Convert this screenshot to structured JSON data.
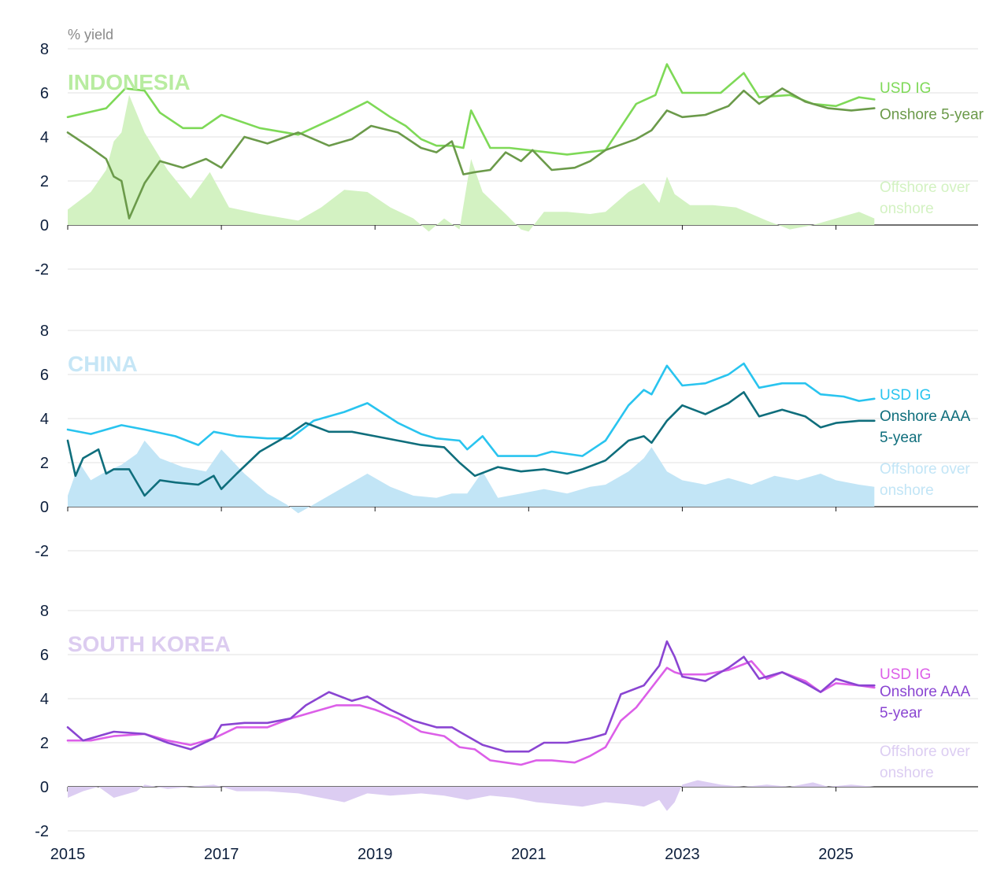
{
  "unit_label": "% yield",
  "chart_data": {
    "type": "line",
    "x_ticks": [
      "2015",
      "2017",
      "2019",
      "2021",
      "2023",
      "2025"
    ],
    "xlim": [
      2015.0,
      2026.85
    ],
    "panels": [
      {
        "title": "INDONESIA",
        "title_color": "#b8eca0",
        "ylim": [
          -2,
          8
        ],
        "y_ticks": [
          8,
          6,
          4,
          2,
          0,
          -2
        ],
        "series": [
          {
            "name": "USD IG",
            "label_lines": [
              "USD IG"
            ],
            "type": "line",
            "color": "#7ed957",
            "x": [
              2015.0,
              2015.5,
              2015.75,
              2016.0,
              2016.2,
              2016.5,
              2016.75,
              2017.0,
              2017.5,
              2018.0,
              2018.5,
              2018.9,
              2019.2,
              2019.4,
              2019.6,
              2019.8,
              2020.0,
              2020.15,
              2020.25,
              2020.5,
              2020.75,
              2021.0,
              2021.5,
              2022.0,
              2022.4,
              2022.65,
              2022.8,
              2023.0,
              2023.2,
              2023.5,
              2023.8,
              2024.0,
              2024.4,
              2024.7,
              2025.0,
              2025.3,
              2025.5
            ],
            "values": [
              4.9,
              5.3,
              6.2,
              6.1,
              5.1,
              4.4,
              4.4,
              5.0,
              4.4,
              4.1,
              4.9,
              5.6,
              4.9,
              4.5,
              3.9,
              3.6,
              3.6,
              3.5,
              5.2,
              3.5,
              3.5,
              3.4,
              3.2,
              3.4,
              5.5,
              5.9,
              7.3,
              6.0,
              6.0,
              6.0,
              6.9,
              5.8,
              5.9,
              5.5,
              5.4,
              5.8,
              5.7
            ]
          },
          {
            "name": "Onshore 5-year",
            "label_lines": [
              "Onshore 5-year"
            ],
            "type": "line",
            "color": "#6b9a4a",
            "x": [
              2015.0,
              2015.3,
              2015.5,
              2015.6,
              2015.7,
              2015.8,
              2016.0,
              2016.2,
              2016.5,
              2016.8,
              2017.0,
              2017.3,
              2017.6,
              2018.0,
              2018.4,
              2018.7,
              2018.95,
              2019.3,
              2019.6,
              2019.8,
              2020.0,
              2020.15,
              2020.3,
              2020.5,
              2020.7,
              2020.9,
              2021.05,
              2021.3,
              2021.6,
              2021.8,
              2022.0,
              2022.4,
              2022.6,
              2022.8,
              2023.0,
              2023.3,
              2023.6,
              2023.8,
              2024.0,
              2024.3,
              2024.6,
              2024.9,
              2025.2,
              2025.5
            ],
            "values": [
              4.2,
              3.5,
              3.0,
              2.2,
              2.0,
              0.3,
              1.9,
              2.9,
              2.6,
              3.0,
              2.6,
              4.0,
              3.7,
              4.2,
              3.6,
              3.9,
              4.5,
              4.2,
              3.5,
              3.3,
              3.8,
              2.3,
              2.4,
              2.5,
              3.3,
              2.9,
              3.4,
              2.5,
              2.6,
              2.9,
              3.4,
              3.9,
              4.3,
              5.2,
              4.9,
              5.0,
              5.4,
              6.1,
              5.5,
              6.2,
              5.6,
              5.3,
              5.2,
              5.3
            ]
          },
          {
            "name": "Offshore over onshore",
            "label_lines": [
              "Offshore over",
              "onshore"
            ],
            "type": "area",
            "color": "#d3f2c2",
            "x": [
              2015.0,
              2015.3,
              2015.5,
              2015.6,
              2015.7,
              2015.8,
              2016.0,
              2016.3,
              2016.6,
              2016.85,
              2017.1,
              2017.5,
              2018.0,
              2018.3,
              2018.6,
              2018.9,
              2019.2,
              2019.5,
              2019.7,
              2019.9,
              2020.1,
              2020.25,
              2020.4,
              2020.55,
              2020.7,
              2020.9,
              2021.0,
              2021.2,
              2021.5,
              2021.8,
              2022.0,
              2022.3,
              2022.5,
              2022.7,
              2022.8,
              2022.9,
              2023.1,
              2023.4,
              2023.7,
              2023.9,
              2024.1,
              2024.4,
              2024.7,
              2025.0,
              2025.3,
              2025.5
            ],
            "values": [
              0.7,
              1.5,
              2.5,
              3.8,
              4.2,
              5.9,
              4.2,
              2.5,
              1.2,
              2.4,
              0.8,
              0.5,
              0.2,
              0.8,
              1.6,
              1.5,
              0.8,
              0.3,
              -0.3,
              0.3,
              -0.2,
              3.0,
              1.5,
              1.0,
              0.5,
              -0.2,
              -0.3,
              0.6,
              0.6,
              0.5,
              0.6,
              1.5,
              1.9,
              1.0,
              2.2,
              1.4,
              0.9,
              0.9,
              0.8,
              0.5,
              0.2,
              -0.2,
              0.0,
              0.3,
              0.6,
              0.3
            ]
          }
        ]
      },
      {
        "title": "CHINA",
        "title_color": "#c6e6f6",
        "ylim": [
          -2,
          8
        ],
        "y_ticks": [
          8,
          6,
          4,
          2,
          0,
          -2
        ],
        "series": [
          {
            "name": "USD IG",
            "label_lines": [
              "USD IG"
            ],
            "type": "line",
            "color": "#29c4ef",
            "x": [
              2015.0,
              2015.3,
              2015.7,
              2016.0,
              2016.4,
              2016.7,
              2016.9,
              2017.2,
              2017.6,
              2017.9,
              2018.2,
              2018.6,
              2018.9,
              2019.3,
              2019.6,
              2019.8,
              2020.1,
              2020.2,
              2020.4,
              2020.6,
              2020.9,
              2021.1,
              2021.3,
              2021.7,
              2022.0,
              2022.3,
              2022.5,
              2022.6,
              2022.8,
              2023.0,
              2023.3,
              2023.6,
              2023.8,
              2024.0,
              2024.3,
              2024.6,
              2024.8,
              2025.1,
              2025.3,
              2025.5
            ],
            "values": [
              3.5,
              3.3,
              3.7,
              3.5,
              3.2,
              2.8,
              3.4,
              3.2,
              3.1,
              3.1,
              3.9,
              4.3,
              4.7,
              3.8,
              3.3,
              3.1,
              3.0,
              2.6,
              3.2,
              2.3,
              2.3,
              2.3,
              2.5,
              2.3,
              3.0,
              4.6,
              5.3,
              5.1,
              6.4,
              5.5,
              5.6,
              6.0,
              6.5,
              5.4,
              5.6,
              5.6,
              5.1,
              5.0,
              4.8,
              4.9
            ]
          },
          {
            "name": "Onshore AAA 5-year",
            "label_lines": [
              "Onshore AAA",
              "5-year"
            ],
            "type": "line",
            "color": "#0f6e7c",
            "x": [
              2015.0,
              2015.1,
              2015.2,
              2015.4,
              2015.5,
              2015.6,
              2015.8,
              2016.0,
              2016.2,
              2016.4,
              2016.7,
              2016.9,
              2017.0,
              2017.2,
              2017.5,
              2017.8,
              2018.1,
              2018.4,
              2018.7,
              2019.0,
              2019.3,
              2019.6,
              2019.9,
              2020.1,
              2020.3,
              2020.6,
              2020.9,
              2021.2,
              2021.5,
              2021.7,
              2022.0,
              2022.3,
              2022.5,
              2022.6,
              2022.8,
              2023.0,
              2023.3,
              2023.6,
              2023.8,
              2024.0,
              2024.3,
              2024.6,
              2024.8,
              2025.0,
              2025.3,
              2025.5
            ],
            "values": [
              3.0,
              1.4,
              2.2,
              2.6,
              1.5,
              1.7,
              1.7,
              0.5,
              1.2,
              1.1,
              1.0,
              1.4,
              0.8,
              1.5,
              2.5,
              3.1,
              3.8,
              3.4,
              3.4,
              3.2,
              3.0,
              2.8,
              2.7,
              2.0,
              1.4,
              1.8,
              1.6,
              1.7,
              1.5,
              1.7,
              2.1,
              3.0,
              3.2,
              2.9,
              3.9,
              4.6,
              4.2,
              4.7,
              5.2,
              4.1,
              4.4,
              4.1,
              3.6,
              3.8,
              3.9,
              3.9
            ]
          },
          {
            "name": "Offshore over onshore",
            "label_lines": [
              "Offshore over",
              "onshore"
            ],
            "type": "area",
            "color": "#c2e5f6",
            "x": [
              2015.0,
              2015.15,
              2015.3,
              2015.5,
              2015.7,
              2015.9,
              2016.0,
              2016.2,
              2016.5,
              2016.8,
              2017.0,
              2017.3,
              2017.6,
              2017.85,
              2018.0,
              2018.3,
              2018.6,
              2018.9,
              2019.2,
              2019.5,
              2019.8,
              2020.0,
              2020.2,
              2020.4,
              2020.6,
              2020.9,
              2021.2,
              2021.5,
              2021.8,
              2022.0,
              2022.3,
              2022.5,
              2022.6,
              2022.8,
              2023.0,
              2023.3,
              2023.6,
              2023.9,
              2024.2,
              2024.5,
              2024.8,
              2025.0,
              2025.3,
              2025.5
            ],
            "values": [
              0.5,
              2.0,
              1.2,
              1.6,
              1.9,
              2.4,
              3.0,
              2.2,
              1.8,
              1.6,
              2.6,
              1.5,
              0.6,
              0.1,
              -0.3,
              0.3,
              0.9,
              1.5,
              0.9,
              0.5,
              0.4,
              0.6,
              0.6,
              1.6,
              0.4,
              0.6,
              0.8,
              0.6,
              0.9,
              1.0,
              1.6,
              2.2,
              2.7,
              1.6,
              1.2,
              1.0,
              1.3,
              1.0,
              1.4,
              1.2,
              1.5,
              1.2,
              1.0,
              0.9
            ]
          }
        ]
      },
      {
        "title": "SOUTH KOREA",
        "title_color": "#dcccf0",
        "ylim": [
          -2,
          8
        ],
        "y_ticks": [
          8,
          6,
          4,
          2,
          0,
          -2
        ],
        "series": [
          {
            "name": "USD IG",
            "label_lines": [
              "USD IG"
            ],
            "type": "line",
            "color": "#dc5fe8",
            "x": [
              2015.0,
              2015.3,
              2015.6,
              2016.0,
              2016.3,
              2016.6,
              2016.9,
              2017.2,
              2017.6,
              2017.9,
              2018.2,
              2018.5,
              2018.8,
              2019.0,
              2019.3,
              2019.6,
              2019.9,
              2020.1,
              2020.3,
              2020.5,
              2020.7,
              2020.9,
              2021.1,
              2021.3,
              2021.6,
              2021.8,
              2022.0,
              2022.2,
              2022.4,
              2022.6,
              2022.8,
              2022.9,
              2023.0,
              2023.3,
              2023.6,
              2023.9,
              2024.1,
              2024.3,
              2024.6,
              2024.8,
              2025.0,
              2025.3,
              2025.5
            ],
            "values": [
              2.1,
              2.1,
              2.3,
              2.4,
              2.1,
              1.9,
              2.2,
              2.7,
              2.7,
              3.1,
              3.4,
              3.7,
              3.7,
              3.5,
              3.1,
              2.5,
              2.3,
              1.8,
              1.7,
              1.2,
              1.1,
              1.0,
              1.2,
              1.2,
              1.1,
              1.4,
              1.8,
              3.0,
              3.6,
              4.5,
              5.4,
              5.2,
              5.1,
              5.1,
              5.3,
              5.7,
              4.9,
              5.2,
              4.8,
              4.3,
              4.7,
              4.6,
              4.5
            ]
          },
          {
            "name": "Onshore AAA 5-year",
            "label_lines": [
              "Onshore AAA",
              "5-year"
            ],
            "type": "line",
            "color": "#8a45d2",
            "x": [
              2015.0,
              2015.2,
              2015.4,
              2015.6,
              2016.0,
              2016.3,
              2016.6,
              2016.9,
              2017.0,
              2017.3,
              2017.6,
              2017.9,
              2018.1,
              2018.4,
              2018.7,
              2018.9,
              2019.2,
              2019.5,
              2019.8,
              2020.0,
              2020.2,
              2020.4,
              2020.7,
              2021.0,
              2021.2,
              2021.5,
              2021.8,
              2022.0,
              2022.2,
              2022.5,
              2022.7,
              2022.8,
              2022.9,
              2023.0,
              2023.3,
              2023.6,
              2023.8,
              2024.0,
              2024.3,
              2024.6,
              2024.8,
              2025.0,
              2025.3,
              2025.5
            ],
            "values": [
              2.7,
              2.1,
              2.3,
              2.5,
              2.4,
              2.0,
              1.7,
              2.2,
              2.8,
              2.9,
              2.9,
              3.1,
              3.7,
              4.3,
              3.9,
              4.1,
              3.5,
              3.0,
              2.7,
              2.7,
              2.3,
              1.9,
              1.6,
              1.6,
              2.0,
              2.0,
              2.2,
              2.4,
              4.2,
              4.6,
              5.5,
              6.6,
              5.9,
              5.0,
              4.8,
              5.4,
              5.9,
              4.9,
              5.2,
              4.7,
              4.3,
              4.9,
              4.6,
              4.6
            ]
          },
          {
            "name": "Offshore over onshore",
            "label_lines": [
              "Offshore over",
              "onshore"
            ],
            "type": "area",
            "color": "#dccdf2",
            "x": [
              2015.0,
              2015.2,
              2015.4,
              2015.6,
              2015.9,
              2016.0,
              2016.3,
              2016.6,
              2016.9,
              2017.2,
              2017.6,
              2018.0,
              2018.3,
              2018.6,
              2018.9,
              2019.2,
              2019.6,
              2019.9,
              2020.2,
              2020.5,
              2020.8,
              2021.1,
              2021.4,
              2021.7,
              2022.0,
              2022.3,
              2022.5,
              2022.7,
              2022.8,
              2022.9,
              2023.0,
              2023.2,
              2023.5,
              2023.8,
              2024.1,
              2024.4,
              2024.7,
              2024.9,
              2025.2,
              2025.5
            ],
            "values": [
              -0.5,
              -0.2,
              0.0,
              -0.5,
              -0.2,
              0.1,
              -0.1,
              0.0,
              0.1,
              -0.2,
              -0.2,
              -0.3,
              -0.5,
              -0.7,
              -0.3,
              -0.4,
              -0.3,
              -0.4,
              -0.6,
              -0.4,
              -0.5,
              -0.7,
              -0.8,
              -0.9,
              -0.7,
              -0.8,
              -0.9,
              -0.6,
              -1.1,
              -0.7,
              0.1,
              0.3,
              0.1,
              0.0,
              0.1,
              0.0,
              0.2,
              0.0,
              0.1,
              0.0
            ]
          }
        ]
      }
    ]
  }
}
